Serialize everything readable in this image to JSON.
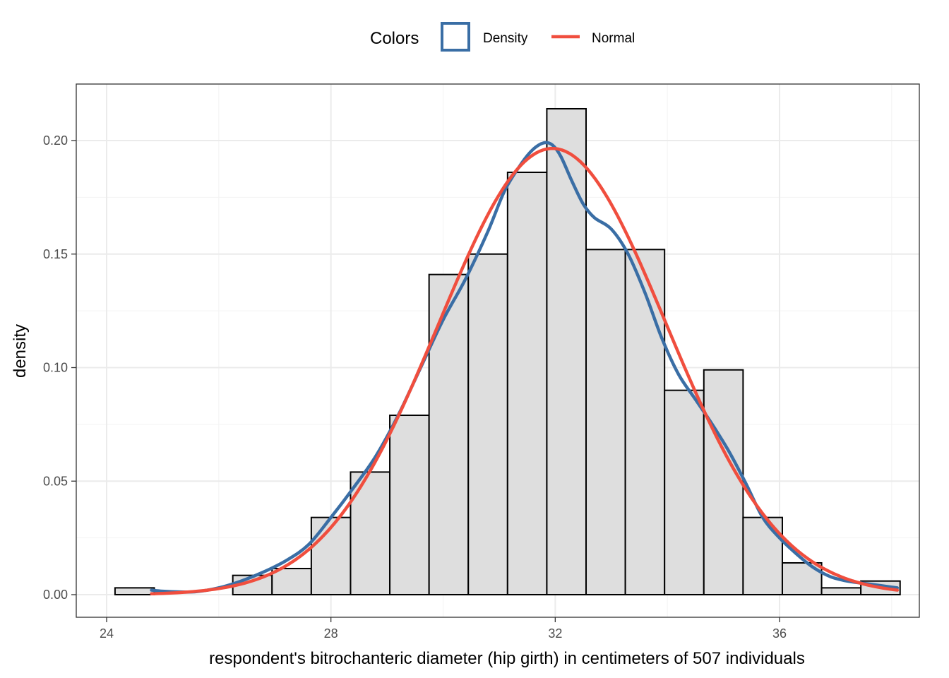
{
  "chart_data": {
    "type": "bar",
    "xlabel": "respondent's bitrochanteric diameter (hip girth) in centimeters of 507 individuals",
    "ylabel": "density",
    "xlim": [
      24,
      38.25
    ],
    "ylim": [
      0,
      0.22
    ],
    "x_ticks": [
      24,
      28,
      32,
      36
    ],
    "y_ticks": [
      0.0,
      0.05,
      0.1,
      0.15,
      0.2
    ],
    "x_tick_labels": [
      "24",
      "28",
      "32",
      "36"
    ],
    "y_tick_labels": [
      "0.00",
      "0.05",
      "0.10",
      "0.15",
      "0.20"
    ],
    "grid": true,
    "legend": {
      "title": "Colors",
      "position": "top",
      "entries": [
        {
          "label": "Density",
          "color": "#3a6ea5",
          "key": "box"
        },
        {
          "label": "Normal",
          "color": "#f04e3e",
          "key": "line"
        }
      ]
    },
    "histogram": {
      "bin_width": 0.7,
      "bins": [
        {
          "x0": 24.15,
          "x1": 24.85,
          "value": 0.003
        },
        {
          "x0": 24.85,
          "x1": 25.55,
          "value": 0.0
        },
        {
          "x0": 25.55,
          "x1": 26.25,
          "value": 0.0
        },
        {
          "x0": 26.25,
          "x1": 26.95,
          "value": 0.0085
        },
        {
          "x0": 26.95,
          "x1": 27.65,
          "value": 0.0115
        },
        {
          "x0": 27.65,
          "x1": 28.35,
          "value": 0.034
        },
        {
          "x0": 28.35,
          "x1": 29.05,
          "value": 0.054
        },
        {
          "x0": 29.05,
          "x1": 29.75,
          "value": 0.079
        },
        {
          "x0": 29.75,
          "x1": 30.45,
          "value": 0.141
        },
        {
          "x0": 30.45,
          "x1": 31.15,
          "value": 0.15
        },
        {
          "x0": 31.15,
          "x1": 31.85,
          "value": 0.186
        },
        {
          "x0": 31.85,
          "x1": 32.55,
          "value": 0.214
        },
        {
          "x0": 32.55,
          "x1": 33.25,
          "value": 0.152
        },
        {
          "x0": 33.25,
          "x1": 33.95,
          "value": 0.152
        },
        {
          "x0": 33.95,
          "x1": 34.65,
          "value": 0.09
        },
        {
          "x0": 34.65,
          "x1": 35.35,
          "value": 0.099
        },
        {
          "x0": 35.35,
          "x1": 36.05,
          "value": 0.034
        },
        {
          "x0": 36.05,
          "x1": 36.75,
          "value": 0.014
        },
        {
          "x0": 36.75,
          "x1": 37.45,
          "value": 0.003
        },
        {
          "x0": 37.45,
          "x1": 38.15,
          "value": 0.006
        }
      ]
    },
    "series": [
      {
        "name": "Density",
        "color": "#3a6ea5",
        "x": [
          24.8,
          25.0,
          25.3,
          25.6,
          26.0,
          26.4,
          26.8,
          27.2,
          27.6,
          28.0,
          28.4,
          28.8,
          29.2,
          29.6,
          30.0,
          30.4,
          30.8,
          31.1,
          31.4,
          31.6,
          31.8,
          31.95,
          32.1,
          32.3,
          32.5,
          32.7,
          33.0,
          33.3,
          33.6,
          33.9,
          34.2,
          34.5,
          34.8,
          35.1,
          35.4,
          35.7,
          36.0,
          36.3,
          36.6,
          36.9,
          37.2,
          37.5,
          37.8,
          38.1
        ],
        "y": [
          0.002,
          0.0015,
          0.0012,
          0.0013,
          0.003,
          0.006,
          0.01,
          0.015,
          0.022,
          0.034,
          0.047,
          0.061,
          0.079,
          0.1,
          0.121,
          0.139,
          0.16,
          0.178,
          0.19,
          0.196,
          0.199,
          0.198,
          0.193,
          0.182,
          0.172,
          0.166,
          0.161,
          0.15,
          0.133,
          0.113,
          0.097,
          0.086,
          0.075,
          0.063,
          0.049,
          0.034,
          0.025,
          0.018,
          0.012,
          0.008,
          0.006,
          0.005,
          0.004,
          0.003
        ]
      },
      {
        "name": "Normal",
        "color": "#f04e3e",
        "mean": 31.95,
        "sd": 2.03,
        "x_range": [
          24.8,
          38.1
        ]
      }
    ]
  }
}
